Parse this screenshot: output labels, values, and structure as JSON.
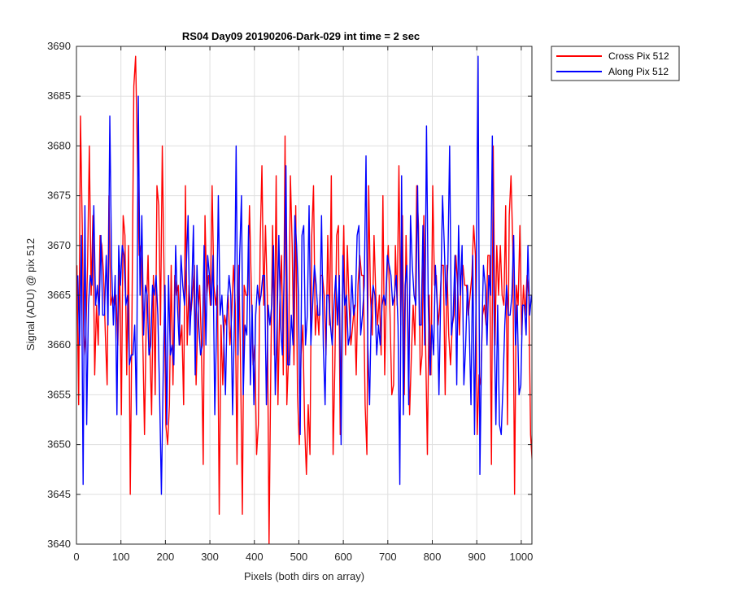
{
  "chart_data": {
    "type": "line",
    "title": "RS04 Day09 20190206-Dark-029 int time = 2 sec",
    "xlabel": "Pixels (both dirs on array)",
    "ylabel": "Signal (ADU) @ pix 512",
    "xlim": [
      0,
      1024
    ],
    "ylim": [
      3640,
      3690
    ],
    "xticks": [
      0,
      100,
      200,
      300,
      400,
      500,
      600,
      700,
      800,
      900,
      1000
    ],
    "yticks": [
      3640,
      3645,
      3650,
      3655,
      3660,
      3665,
      3670,
      3675,
      3680,
      3685,
      3690
    ],
    "grid": true,
    "legend_position": "outside-top-right",
    "series": [
      {
        "name": "Cross Pix 512",
        "color": "#ff0000",
        "x_start": 1,
        "x_step": 4,
        "values": [
          3668,
          3654,
          3683,
          3672,
          3659,
          3661,
          3668,
          3680,
          3665,
          3673,
          3657,
          3664,
          3660,
          3671,
          3670,
          3667,
          3661,
          3656,
          3675,
          3664,
          3665,
          3664,
          3665,
          3660,
          3668,
          3653,
          3673,
          3671,
          3657,
          3670,
          3645,
          3664,
          3686,
          3689,
          3679,
          3669,
          3670,
          3661,
          3651,
          3663,
          3669,
          3660,
          3653,
          3667,
          3655,
          3676,
          3674,
          3662,
          3680,
          3667,
          3652,
          3650,
          3654,
          3668,
          3656,
          3667,
          3665,
          3666,
          3660,
          3662,
          3654,
          3676,
          3660,
          3666,
          3663,
          3665,
          3668,
          3656,
          3663,
          3666,
          3660,
          3648,
          3673,
          3665,
          3667,
          3664,
          3676,
          3666,
          3664,
          3666,
          3643,
          3662,
          3656,
          3663,
          3662,
          3665,
          3660,
          3663,
          3668,
          3664,
          3648,
          3668,
          3658,
          3643,
          3666,
          3665,
          3665,
          3674,
          3666,
          3658,
          3660,
          3649,
          3652,
          3670,
          3678,
          3664,
          3672,
          3665,
          3640,
          3658,
          3672,
          3659,
          3677,
          3654,
          3664,
          3669,
          3657,
          3681,
          3654,
          3659,
          3677,
          3670,
          3658,
          3674,
          3655,
          3650,
          3659,
          3662,
          3652,
          3647,
          3654,
          3649,
          3671,
          3676,
          3661,
          3664,
          3661,
          3667,
          3667,
          3665,
          3659,
          3671,
          3662,
          3677,
          3649,
          3658,
          3671,
          3672,
          3651,
          3663,
          3672,
          3659,
          3670,
          3664,
          3660,
          3662,
          3664,
          3657,
          3666,
          3669,
          3667,
          3667,
          3654,
          3649,
          3676,
          3665,
          3661,
          3671,
          3665,
          3662,
          3665,
          3659,
          3675,
          3657,
          3666,
          3670,
          3663,
          3655,
          3656,
          3670,
          3664,
          3678,
          3662,
          3673,
          3655,
          3671,
          3663,
          3653,
          3659,
          3664,
          3660,
          3676,
          3672,
          3657,
          3659,
          3673,
          3660,
          3649,
          3665,
          3657,
          3676,
          3666,
          3667,
          3662,
          3664,
          3668,
          3668,
          3655,
          3668,
          3661,
          3658,
          3662,
          3663,
          3669,
          3666,
          3661,
          3667,
          3668,
          3666,
          3666,
          3663,
          3665,
          3667,
          3672,
          3669,
          3651,
          3657,
          3656,
          3663,
          3664,
          3662,
          3669,
          3669,
          3648,
          3680,
          3660,
          3670,
          3665,
          3670,
          3665,
          3664,
          3674,
          3652,
          3673,
          3677,
          3670,
          3645,
          3666,
          3664,
          3672,
          3661,
          3666,
          3663,
          3667,
          3665,
          3651,
          3648,
          3660,
          3658,
          3657,
          3659,
          3670,
          3655,
          3660,
          3662,
          3670,
          3663,
          3664,
          3665,
          3666,
          3662,
          3665,
          3667,
          3662,
          3672,
          3677,
          3659,
          3674,
          3670,
          3663,
          3658,
          3665,
          3653,
          3657,
          3664,
          3657,
          3682,
          3664,
          3666,
          3663,
          3662,
          3680,
          3658,
          3677,
          3662,
          3675,
          3666,
          3665,
          3650,
          3665,
          3663,
          3659,
          3668,
          3666,
          3662,
          3664,
          3668,
          3661,
          3669,
          3665,
          3670,
          3658,
          3663,
          3649,
          3664,
          3670,
          3666,
          3666,
          3664,
          3662,
          3665,
          3657,
          3664,
          3661,
          3663,
          3660,
          3671,
          3666,
          3655,
          3661,
          3666,
          3660,
          3674,
          3666,
          3674,
          3664,
          3663,
          3666,
          3662,
          3659,
          3662,
          3665,
          3648,
          3667,
          3663,
          3666,
          3670,
          3663,
          3663,
          3664,
          3662,
          3664,
          3663,
          3667,
          3665,
          3672,
          3653,
          3672,
          3671,
          3659,
          3665,
          3655,
          3655,
          3665,
          3676,
          3661,
          3669,
          3672,
          3661,
          3670,
          3660,
          3665,
          3665,
          3654,
          3662,
          3667,
          3654,
          3657,
          3664,
          3666,
          3666,
          3664,
          3661,
          3665,
          3658,
          3667,
          3665,
          3667,
          3665,
          3665,
          3663,
          3662,
          3671,
          3662,
          3675,
          3666,
          3664,
          3665,
          3660,
          3662,
          3663,
          3671,
          3645,
          3669,
          3665,
          3667,
          3657,
          3667,
          3662,
          3657,
          3669,
          3664,
          3669,
          3664,
          3670,
          3676,
          3666,
          3662,
          3668,
          3681,
          3664,
          3670,
          3667,
          3660,
          3663,
          3658,
          3653,
          3680,
          3668,
          3670,
          3665,
          3662,
          3649,
          3668,
          3667,
          3672,
          3671,
          3670,
          3670,
          3658,
          3669,
          3666,
          3662,
          3651,
          3667,
          3669,
          3663,
          3666,
          3672,
          3665,
          3671,
          3651,
          3662,
          3674,
          3657,
          3663,
          3666,
          3673,
          3662,
          3671,
          3661,
          3667,
          3664,
          3664,
          3665,
          3668,
          3665,
          3664,
          3664,
          3668,
          3648,
          3651,
          3663,
          3666,
          3675,
          3660,
          3666,
          3674,
          3664,
          3666,
          3667,
          3667,
          3665,
          3665,
          3662,
          3664,
          3669,
          3669,
          3662,
          3667,
          3665,
          3661,
          3667,
          3654,
          3665,
          3665,
          3658,
          3661,
          3645,
          3659,
          3674,
          3662,
          3658,
          3660,
          3666,
          3669,
          3659,
          3667,
          3649,
          3670,
          3663,
          3666,
          3660,
          3662,
          3662,
          3672,
          3668,
          3671,
          3687,
          3664,
          3666,
          3660,
          3661,
          3668,
          3680,
          3660,
          3676,
          3649,
          3667,
          3675,
          3658,
          3648,
          3677,
          3670,
          3665,
          3662,
          3650,
          3665,
          3664,
          3670,
          3665,
          3664,
          3664,
          3670,
          3659,
          3664,
          3675,
          3671,
          3664,
          3664,
          3666,
          3645,
          3660,
          3662,
          3660,
          3660,
          3661,
          3663,
          3670,
          3663,
          3665,
          3669,
          3672,
          3669,
          3657,
          3663,
          3670,
          3666,
          3661
        ]
      },
      {
        "name": "Along Pix 512",
        "color": "#0000ff",
        "x_start": 3,
        "x_step": 4,
        "values": [
          3667,
          3660,
          3671,
          3646,
          3674,
          3652,
          3664,
          3667,
          3666,
          3674,
          3664,
          3666,
          3663,
          3671,
          3663,
          3663,
          3669,
          3662,
          3683,
          3668,
          3662,
          3667,
          3653,
          3670,
          3666,
          3670,
          3669,
          3664,
          3665,
          3658,
          3659,
          3659,
          3662,
          3653,
          3685,
          3665,
          3673,
          3661,
          3666,
          3665,
          3659,
          3660,
          3666,
          3665,
          3667,
          3663,
          3655,
          3645,
          3657,
          3666,
          3652,
          3667,
          3659,
          3660,
          3658,
          3670,
          3664,
          3660,
          3669,
          3666,
          3664,
          3668,
          3673,
          3661,
          3665,
          3672,
          3657,
          3668,
          3662,
          3659,
          3660,
          3670,
          3660,
          3669,
          3667,
          3664,
          3669,
          3653,
          3662,
          3675,
          3663,
          3665,
          3661,
          3655,
          3664,
          3667,
          3665,
          3653,
          3662,
          3680,
          3659,
          3669,
          3675,
          3655,
          3662,
          3661,
          3672,
          3656,
          3664,
          3654,
          3663,
          3666,
          3664,
          3665,
          3667,
          3667,
          3654,
          3664,
          3662,
          3664,
          3670,
          3655,
          3662,
          3671,
          3662,
          3659,
          3667,
          3678,
          3658,
          3658,
          3663,
          3660,
          3673,
          3670,
          3665,
          3651,
          3671,
          3672,
          3660,
          3663,
          3674,
          3660,
          3664,
          3668,
          3666,
          3663,
          3663,
          3673,
          3660,
          3654,
          3665,
          3665,
          3662,
          3660,
          3664,
          3667,
          3662,
          3667,
          3650,
          3669,
          3664,
          3665,
          3660,
          3661,
          3667,
          3663,
          3664,
          3671,
          3672,
          3661,
          3663,
          3666,
          3679,
          3660,
          3654,
          3664,
          3666,
          3665,
          3659,
          3662,
          3660,
          3664,
          3665,
          3664,
          3669,
          3668,
          3667,
          3664,
          3665,
          3667,
          3662,
          3646,
          3677,
          3653,
          3666,
          3668,
          3654,
          3673,
          3668,
          3665,
          3664,
          3676,
          3662,
          3662,
          3672,
          3660,
          3682,
          3664,
          3657,
          3662,
          3659,
          3668,
          3664,
          3655,
          3665,
          3675,
          3670,
          3664,
          3668,
          3680,
          3661,
          3663,
          3669,
          3656,
          3672,
          3665,
          3670,
          3656,
          3660,
          3666,
          3662,
          3654,
          3669,
          3651,
          3667,
          3689,
          3647,
          3660,
          3668,
          3666,
          3660,
          3667,
          3665,
          3681,
          3663,
          3652,
          3664,
          3652,
          3651,
          3656,
          3662,
          3666,
          3663,
          3663,
          3665,
          3671,
          3660,
          3664,
          3655,
          3656,
          3664,
          3664,
          3661,
          3670,
          3663,
          3665,
          3664,
          3660,
          3662,
          3667,
          3666,
          3668,
          3663,
          3658,
          3667,
          3662,
          3670,
          3669,
          3663,
          3672,
          3654,
          3664,
          3668,
          3658,
          3663,
          3665,
          3665,
          3668,
          3667,
          3664,
          3662,
          3658,
          3660,
          3656,
          3665,
          3679,
          3662,
          3673,
          3666,
          3651,
          3662,
          3665,
          3669,
          3657,
          3663,
          3664,
          3658,
          3660,
          3667,
          3666,
          3674,
          3662,
          3663,
          3664,
          3667,
          3662,
          3667,
          3663,
          3665,
          3666,
          3670,
          3671,
          3660,
          3671,
          3665,
          3664,
          3668,
          3665,
          3667,
          3661,
          3642,
          3667,
          3658,
          3667,
          3664,
          3653,
          3663,
          3669,
          3661,
          3666,
          3664,
          3666,
          3657,
          3660,
          3673,
          3668,
          3665,
          3663,
          3667,
          3656,
          3652,
          3660,
          3662,
          3662,
          3665,
          3665,
          3659,
          3659,
          3673,
          3665,
          3658,
          3675,
          3663,
          3664,
          3669,
          3666,
          3661,
          3663,
          3665,
          3664,
          3657,
          3667,
          3660,
          3664,
          3666,
          3660,
          3669,
          3664,
          3665,
          3667,
          3670,
          3666,
          3672,
          3657,
          3663,
          3663,
          3660,
          3668,
          3666,
          3667,
          3664,
          3662,
          3664,
          3664,
          3652,
          3677,
          3670,
          3664,
          3667,
          3663,
          3664,
          3668,
          3666,
          3658,
          3664,
          3663,
          3664,
          3669,
          3660,
          3666,
          3665,
          3660,
          3667,
          3666,
          3668,
          3667,
          3668,
          3658,
          3659,
          3664,
          3661,
          3664,
          3654,
          3664,
          3666,
          3662,
          3670,
          3660,
          3663,
          3667,
          3668,
          3663,
          3667,
          3667,
          3652,
          3658,
          3664,
          3662,
          3668,
          3663,
          3664,
          3665,
          3662,
          3664,
          3667,
          3669,
          3665,
          3667,
          3657,
          3672,
          3666,
          3660,
          3664,
          3665,
          3670,
          3662,
          3663,
          3661,
          3668,
          3663,
          3664,
          3668,
          3666,
          3660,
          3664,
          3664,
          3666,
          3665,
          3663,
          3666,
          3668,
          3665,
          3667,
          3664,
          3660,
          3670,
          3661,
          3664,
          3663,
          3678,
          3659,
          3668,
          3653,
          3671,
          3662,
          3665,
          3665,
          3664,
          3668,
          3659,
          3659,
          3670,
          3663,
          3676,
          3665,
          3668,
          3661,
          3657,
          3669,
          3659,
          3667,
          3664,
          3674,
          3663,
          3662,
          3668,
          3663,
          3670,
          3662,
          3666,
          3657,
          3670,
          3658,
          3662,
          3667,
          3668,
          3666,
          3664,
          3665,
          3667,
          3662,
          3660,
          3669,
          3661,
          3667,
          3662,
          3669,
          3668,
          3664,
          3658,
          3665,
          3664,
          3655,
          3666,
          3664,
          3665,
          3661,
          3668,
          3664,
          3662,
          3660,
          3677,
          3663,
          3665,
          3670,
          3666,
          3658,
          3661,
          3669,
          3667,
          3658,
          3666,
          3664,
          3665,
          3664,
          3663,
          3677,
          3669,
          3663,
          3665,
          3658,
          3662,
          3669,
          3660,
          3666,
          3667,
          3665,
          3663,
          3663,
          3666,
          3669,
          3667,
          3660,
          3669,
          3668,
          3664,
          3662,
          3669,
          3667,
          3665,
          3661,
          3668,
          3662,
          3663,
          3665,
          3668,
          3670,
          3661,
          3662,
          3666,
          3668
        ]
      }
    ]
  }
}
